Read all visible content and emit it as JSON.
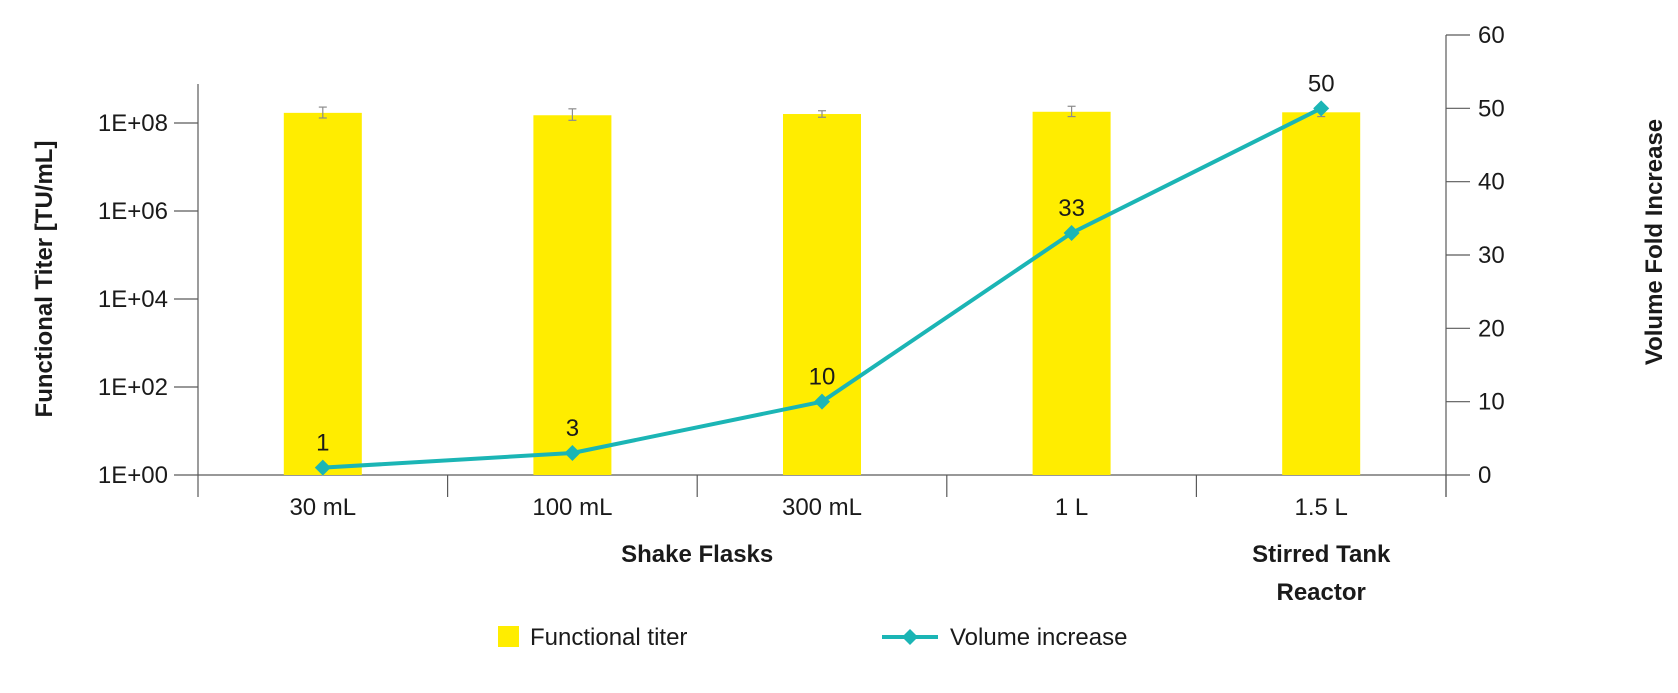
{
  "chart_data": {
    "type": "bar",
    "categories": [
      "30 mL",
      "100 mL",
      "300 mL",
      "1 L",
      "1.5 L"
    ],
    "group_labels": [
      {
        "lines": [
          "Shake Flasks"
        ],
        "span": [
          "30 mL",
          "1 L"
        ]
      },
      {
        "lines": [
          "Stirred Tank",
          "Reactor"
        ],
        "span": [
          "1.5 L",
          "1.5 L"
        ]
      }
    ],
    "series": [
      {
        "name": "Functional titer",
        "type": "bar",
        "axis": "left",
        "color": "#ffed00",
        "values": [
          170000000,
          150000000,
          160000000,
          180000000,
          175000000
        ],
        "error_bars": [
          [
            130000000,
            230000000
          ],
          [
            115000000,
            210000000
          ],
          [
            135000000,
            190000000
          ],
          [
            140000000,
            240000000
          ],
          [
            140000000,
            220000000
          ]
        ]
      },
      {
        "name": "Volume increase",
        "type": "line",
        "marker": "diamond",
        "axis": "right",
        "color": "#1bb5b5",
        "values": [
          1,
          3,
          10,
          33,
          50
        ],
        "data_labels": [
          "1",
          "3",
          "10",
          "33",
          "50"
        ]
      }
    ],
    "y_left": {
      "label": "Functional Titer [TU/mL]",
      "scale": "log",
      "range": [
        1,
        10000000000
      ],
      "ticks": [
        1,
        100,
        10000,
        1000000,
        100000000
      ],
      "tick_labels": [
        "1E+00",
        "1E+02",
        "1E+04",
        "1E+06",
        "1E+08"
      ]
    },
    "y_right": {
      "label": "Volume Fold Increase",
      "scale": "linear",
      "range": [
        0,
        60
      ],
      "ticks": [
        0,
        10,
        20,
        30,
        40,
        50,
        60
      ],
      "tick_labels": [
        "0",
        "10",
        "20",
        "30",
        "40",
        "50",
        "60"
      ]
    },
    "grid": false,
    "legend": {
      "position": "bottom",
      "entries": [
        "Functional titer",
        "Volume increase"
      ]
    }
  }
}
